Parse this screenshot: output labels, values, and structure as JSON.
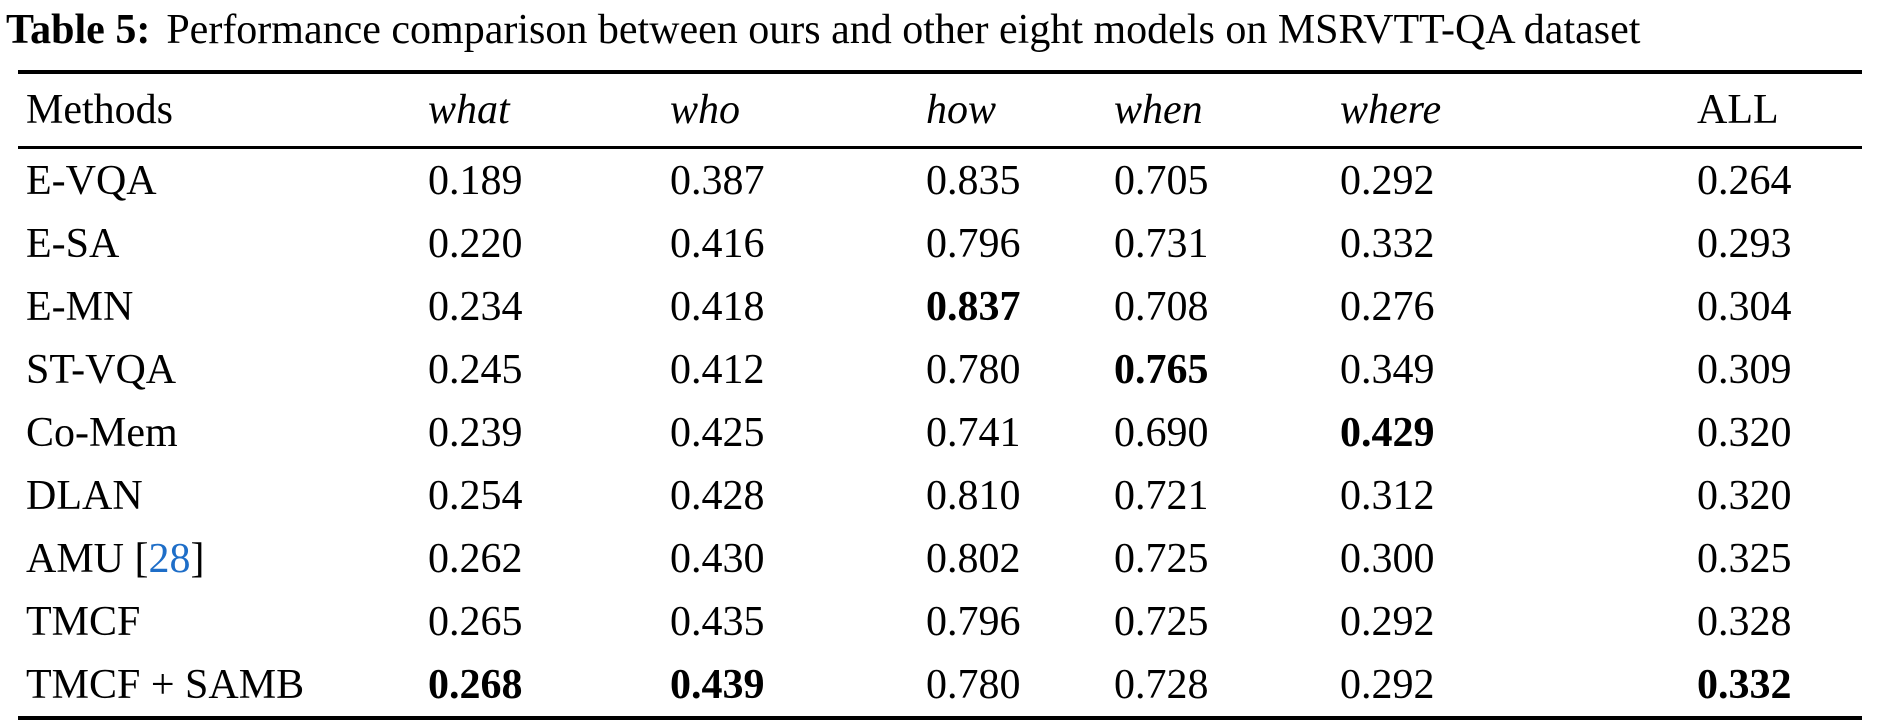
{
  "title": {
    "label": "Table 5:",
    "text": "Performance comparison between ours and other eight models on MSRVTT-QA dataset"
  },
  "colors": {
    "citation_blue": "#1e6ec8",
    "text_black": "#000000"
  },
  "table": {
    "columns": [
      {
        "label": "Methods",
        "italic": false
      },
      {
        "label": "what",
        "italic": true
      },
      {
        "label": "who",
        "italic": true
      },
      {
        "label": "how",
        "italic": true
      },
      {
        "label": "when",
        "italic": true
      },
      {
        "label": "where",
        "italic": true
      },
      {
        "label": "ALL",
        "italic": false
      }
    ],
    "rows": [
      {
        "method": "E-VQA",
        "values": [
          {
            "v": "0.189"
          },
          {
            "v": "0.387"
          },
          {
            "v": "0.835"
          },
          {
            "v": "0.705"
          },
          {
            "v": "0.292"
          },
          {
            "v": "0.264"
          }
        ]
      },
      {
        "method": "E-SA",
        "values": [
          {
            "v": "0.220"
          },
          {
            "v": "0.416"
          },
          {
            "v": "0.796"
          },
          {
            "v": "0.731"
          },
          {
            "v": "0.332"
          },
          {
            "v": "0.293"
          }
        ]
      },
      {
        "method": "E-MN",
        "values": [
          {
            "v": "0.234"
          },
          {
            "v": "0.418"
          },
          {
            "v": "0.837",
            "b": true
          },
          {
            "v": "0.708"
          },
          {
            "v": "0.276"
          },
          {
            "v": "0.304"
          }
        ]
      },
      {
        "method": "ST-VQA",
        "values": [
          {
            "v": "0.245"
          },
          {
            "v": "0.412"
          },
          {
            "v": "0.780"
          },
          {
            "v": "0.765",
            "b": true
          },
          {
            "v": "0.349"
          },
          {
            "v": "0.309"
          }
        ]
      },
      {
        "method": "Co-Mem",
        "values": [
          {
            "v": "0.239"
          },
          {
            "v": "0.425"
          },
          {
            "v": "0.741"
          },
          {
            "v": "0.690"
          },
          {
            "v": "0.429",
            "b": true
          },
          {
            "v": "0.320"
          }
        ]
      },
      {
        "method": "DLAN",
        "values": [
          {
            "v": "0.254"
          },
          {
            "v": "0.428"
          },
          {
            "v": "0.810"
          },
          {
            "v": "0.721"
          },
          {
            "v": "0.312"
          },
          {
            "v": "0.320"
          }
        ]
      },
      {
        "method": "AMU [28]",
        "method_parts": [
          {
            "t": "AMU ["
          },
          {
            "t": "28",
            "cite": true
          },
          {
            "t": "]"
          }
        ],
        "values": [
          {
            "v": "0.262"
          },
          {
            "v": "0.430"
          },
          {
            "v": "0.802"
          },
          {
            "v": "0.725"
          },
          {
            "v": "0.300"
          },
          {
            "v": "0.325"
          }
        ]
      },
      {
        "method": "TMCF",
        "values": [
          {
            "v": "0.265"
          },
          {
            "v": "0.435"
          },
          {
            "v": "0.796"
          },
          {
            "v": "0.725"
          },
          {
            "v": "0.292"
          },
          {
            "v": "0.328"
          }
        ]
      },
      {
        "method": "TMCF + SAMB",
        "values": [
          {
            "v": "0.268",
            "b": true
          },
          {
            "v": "0.439",
            "b": true
          },
          {
            "v": "0.780"
          },
          {
            "v": "0.728"
          },
          {
            "v": "0.292"
          },
          {
            "v": "0.332",
            "b": true
          }
        ]
      }
    ]
  }
}
